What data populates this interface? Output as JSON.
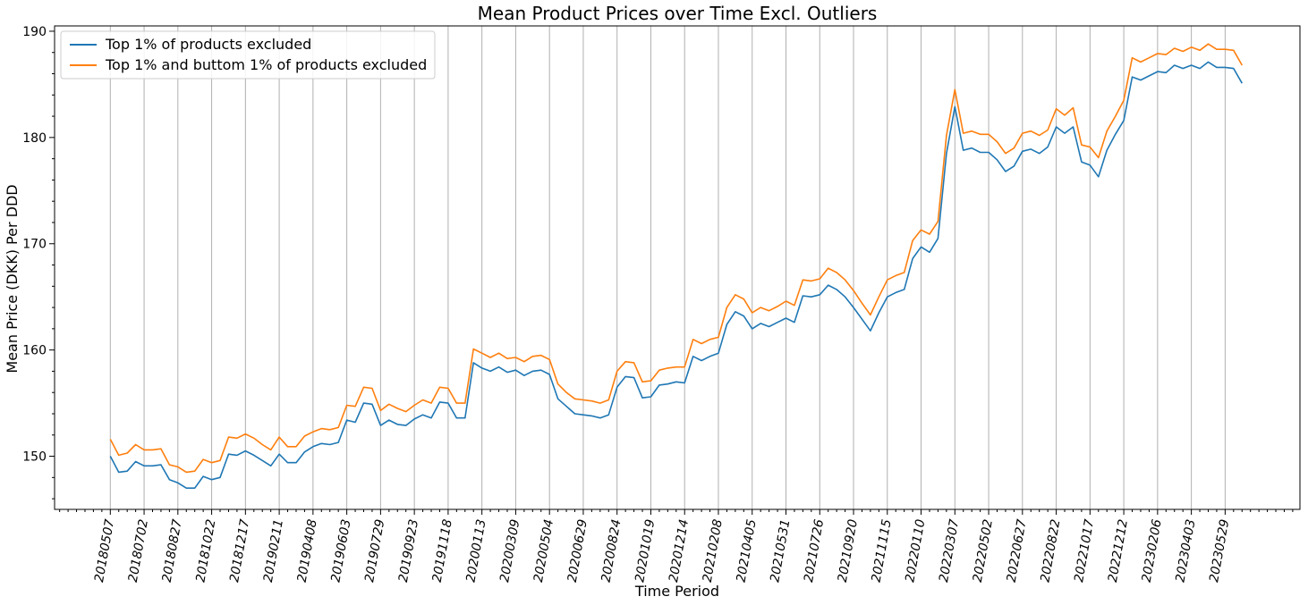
{
  "chart_data": {
    "type": "line",
    "title": "Mean Product Prices over Time Excl. Outliers",
    "xlabel": "Time Period",
    "ylabel": "Mean Price (DKK) Per DDD",
    "ylim": [
      145,
      190.5
    ],
    "yticks": [
      150,
      160,
      170,
      180,
      190
    ],
    "grid": "x-major",
    "legend_position": "top-left",
    "xtick_labels": [
      "20180507",
      "20180702",
      "20180827",
      "20181022",
      "20181217",
      "20190211",
      "20190408",
      "20190603",
      "20190729",
      "20190923",
      "20191118",
      "20200113",
      "20200309",
      "20200504",
      "20200629",
      "20200824",
      "20201019",
      "20201214",
      "20210208",
      "20210405",
      "20210531",
      "20210726",
      "20210920",
      "20211115",
      "20220110",
      "20220307",
      "20220502",
      "20220627",
      "20220822",
      "20221017",
      "20221212",
      "20230206",
      "20230403",
      "20230529"
    ],
    "series": [
      {
        "name": "Top 1% of products excluded",
        "color": "#1f77b4",
        "values": [
          150.0,
          148.5,
          148.6,
          149.5,
          149.1,
          149.1,
          149.2,
          147.8,
          147.5,
          147.0,
          147.0,
          148.1,
          147.8,
          148.0,
          150.2,
          150.1,
          150.5,
          150.1,
          149.6,
          149.1,
          150.2,
          149.4,
          149.4,
          150.4,
          150.9,
          151.2,
          151.1,
          151.3,
          153.4,
          153.2,
          155.0,
          154.9,
          152.9,
          153.4,
          153.0,
          152.9,
          153.5,
          153.9,
          153.6,
          155.1,
          155.0,
          153.6,
          153.6,
          158.8,
          158.3,
          158.0,
          158.4,
          157.9,
          158.1,
          157.6,
          158.0,
          158.1,
          157.7,
          155.4,
          154.7,
          154.0,
          153.9,
          153.8,
          153.6,
          153.9,
          156.5,
          157.5,
          157.4,
          155.5,
          155.6,
          156.7,
          156.8,
          157.0,
          156.9,
          159.4,
          159.0,
          159.4,
          159.7,
          162.4,
          163.6,
          163.2,
          162.0,
          162.5,
          162.2,
          162.6,
          163.0,
          162.6,
          165.1,
          165.0,
          165.2,
          166.1,
          165.7,
          165.0,
          164.0,
          162.9,
          161.8,
          163.5,
          165.0,
          165.4,
          165.7,
          168.6,
          169.7,
          169.2,
          170.5,
          178.5,
          182.9,
          178.8,
          179.0,
          178.6,
          178.6,
          177.9,
          176.8,
          177.3,
          178.7,
          178.9,
          178.5,
          179.1,
          181.0,
          180.4,
          181.0,
          177.7,
          177.4,
          176.3,
          178.8,
          180.3,
          181.6,
          185.7,
          185.4,
          185.8,
          186.2,
          186.1,
          186.8,
          186.5,
          186.8,
          186.5,
          187.1,
          186.6,
          186.6,
          186.5,
          185.1
        ]
      },
      {
        "name": "Top 1% and buttom 1% of products excluded",
        "color": "#ff7f0e",
        "values": [
          151.6,
          150.1,
          150.3,
          151.1,
          150.6,
          150.6,
          150.7,
          149.2,
          149.0,
          148.5,
          148.6,
          149.7,
          149.4,
          149.6,
          151.8,
          151.7,
          152.1,
          151.7,
          151.1,
          150.6,
          151.8,
          150.9,
          150.9,
          151.9,
          152.3,
          152.6,
          152.5,
          152.7,
          154.8,
          154.7,
          156.5,
          156.4,
          154.3,
          154.9,
          154.5,
          154.2,
          154.8,
          155.3,
          155.0,
          156.5,
          156.4,
          155.0,
          155.0,
          160.1,
          159.7,
          159.3,
          159.7,
          159.2,
          159.3,
          158.9,
          159.4,
          159.5,
          159.1,
          156.8,
          156.0,
          155.4,
          155.3,
          155.2,
          155.0,
          155.3,
          158.0,
          158.9,
          158.8,
          157.0,
          157.1,
          158.1,
          158.3,
          158.4,
          158.4,
          161.0,
          160.6,
          161.0,
          161.2,
          164.0,
          165.2,
          164.8,
          163.5,
          164.0,
          163.7,
          164.1,
          164.6,
          164.2,
          166.6,
          166.5,
          166.7,
          167.7,
          167.3,
          166.6,
          165.6,
          164.4,
          163.3,
          165.0,
          166.6,
          167.0,
          167.3,
          170.3,
          171.3,
          170.9,
          172.1,
          180.2,
          184.5,
          180.4,
          180.6,
          180.3,
          180.3,
          179.6,
          178.5,
          179.0,
          180.4,
          180.6,
          180.2,
          180.7,
          182.7,
          182.1,
          182.8,
          179.3,
          179.1,
          178.1,
          180.6,
          182.0,
          183.5,
          187.5,
          187.1,
          187.5,
          187.9,
          187.8,
          188.4,
          188.1,
          188.5,
          188.2,
          188.8,
          188.3,
          188.3,
          188.2,
          186.8
        ]
      }
    ]
  }
}
